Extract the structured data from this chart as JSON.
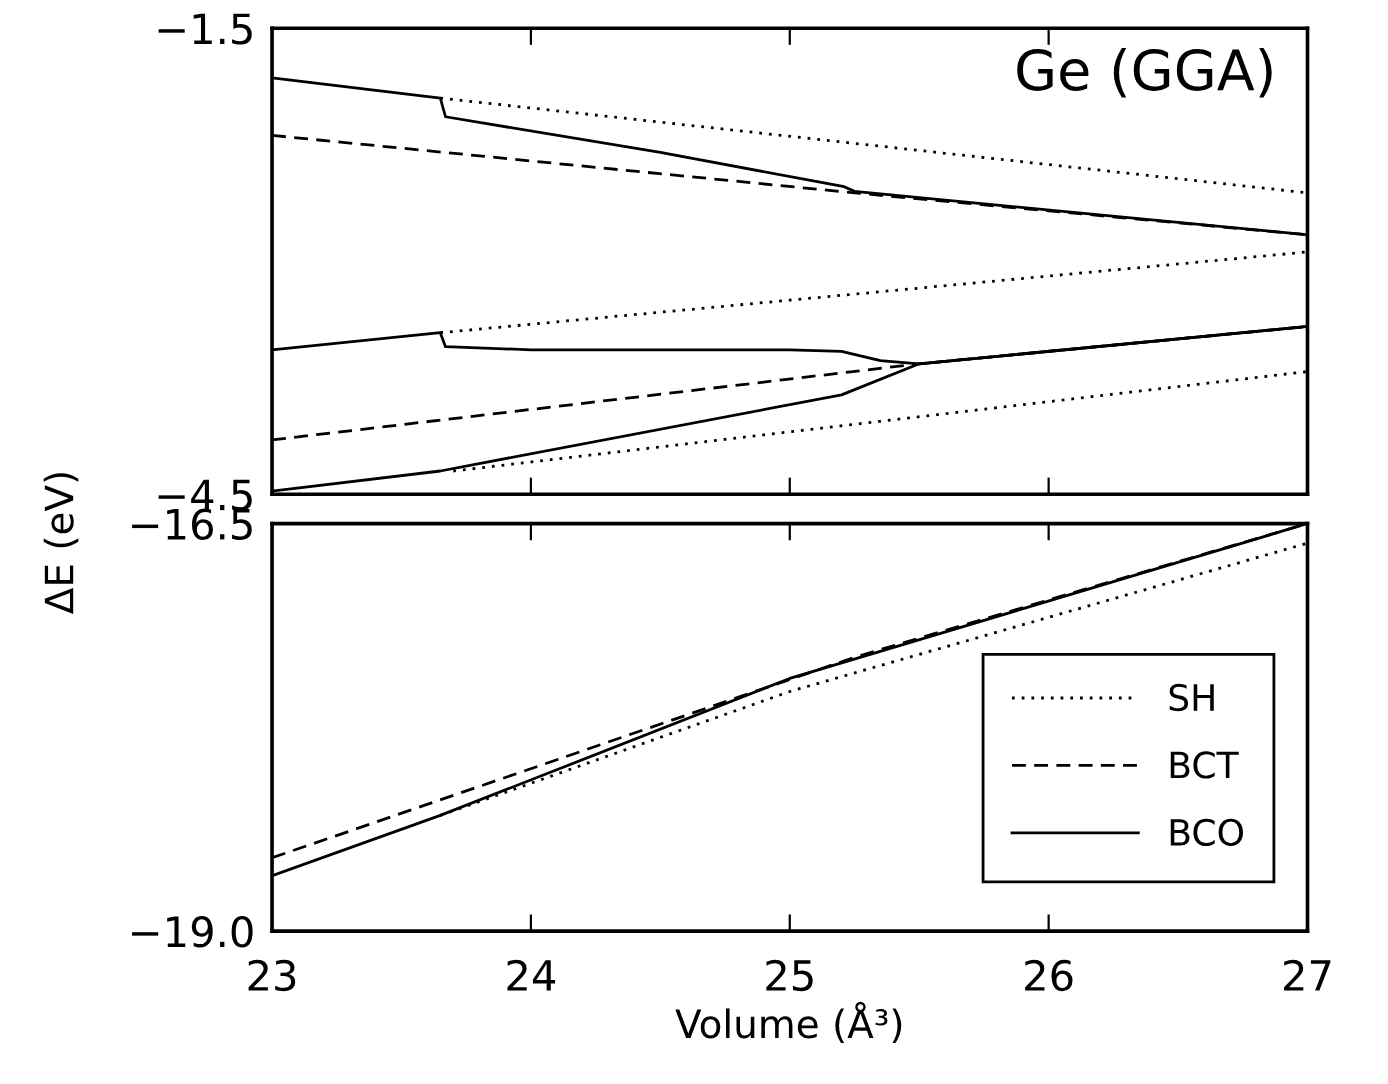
{
  "chart_data": [
    {
      "type": "line",
      "ylabel": "ΔE (eV)",
      "annotations": [
        "Ge (GGA)"
      ],
      "xlim": [
        23,
        27
      ],
      "xticks": [
        {
          "value": 23,
          "label": null
        },
        {
          "value": 24,
          "label": null
        },
        {
          "value": 25,
          "label": null
        },
        {
          "value": 26,
          "label": null
        },
        {
          "value": 27,
          "label": null
        }
      ],
      "ylim": [
        -4.5,
        -1.5
      ],
      "yticks": [
        -1.5,
        -4.5
      ],
      "tick_labels": "y",
      "grid": false,
      "legend": false,
      "series": [
        {
          "color": "#000000",
          "line_style": "dotted",
          "x": [
            23.65,
            27
          ],
          "values": [
            -1.95,
            -2.56
          ]
        },
        {
          "color": "#000000",
          "line_style": "dotted",
          "x": [
            23.65,
            27
          ],
          "values": [
            -3.46,
            -2.94
          ]
        },
        {
          "color": "#000000",
          "line_style": "dotted",
          "x": [
            23.7,
            27
          ],
          "values": [
            -4.35,
            -3.71
          ]
        },
        {
          "color": "#000000",
          "line_style": "dashed",
          "x": [
            23,
            25.25,
            27
          ],
          "values": [
            -2.19,
            -2.56,
            -2.83
          ]
        },
        {
          "color": "#000000",
          "line_style": "dashed",
          "x": [
            23,
            25.5,
            27
          ],
          "values": [
            -4.15,
            -3.66,
            -3.42
          ]
        },
        {
          "color": "#000000",
          "line_style": "solid",
          "x": [
            23,
            23.65,
            23.67,
            24.5,
            25.21,
            25.25,
            27
          ],
          "values": [
            -1.82,
            -1.95,
            -2.07,
            -2.3,
            -2.52,
            -2.55,
            -2.83
          ]
        },
        {
          "color": "#000000",
          "line_style": "solid",
          "x": [
            23,
            23.65,
            23.67,
            24.0,
            25.0,
            25.2,
            25.35,
            25.5,
            27
          ],
          "values": [
            -3.57,
            -3.46,
            -3.55,
            -3.57,
            -3.57,
            -3.58,
            -3.64,
            -3.66,
            -3.42
          ]
        },
        {
          "color": "#000000",
          "line_style": "solid",
          "x": [
            23,
            23.65,
            25.2,
            25.5,
            27
          ],
          "values": [
            -4.48,
            -4.35,
            -3.86,
            -3.66,
            -3.42
          ]
        }
      ]
    },
    {
      "type": "line",
      "xlabel": "Volume (Å³)",
      "xlim": [
        23,
        27
      ],
      "xticks": [
        {
          "value": 23,
          "label": "23"
        },
        {
          "value": 24,
          "label": "24"
        },
        {
          "value": 25,
          "label": "25"
        },
        {
          "value": 26,
          "label": "26"
        },
        {
          "value": 27,
          "label": "27"
        }
      ],
      "ylim": [
        -19.0,
        -16.5
      ],
      "yticks": [
        {
          "value": -16.5,
          "label": "−16.5"
        },
        {
          "value": -19.0,
          "label": "−19.0"
        }
      ],
      "grid": false,
      "legend": "right",
      "series": [
        {
          "name": "SH",
          "color": "#000000",
          "line_style": "dotted",
          "x": [
            23.65,
            25,
            27
          ],
          "values": [
            -18.29,
            -17.53,
            -16.62
          ]
        },
        {
          "name": "BCT",
          "color": "#000000",
          "line_style": "dashed",
          "x": [
            23,
            25.25,
            27
          ],
          "values": [
            -18.55,
            -17.32,
            -16.5
          ]
        },
        {
          "name": "BCO",
          "color": "#000000",
          "line_style": "solid",
          "x": [
            23,
            23.65,
            25,
            27
          ],
          "values": [
            -18.66,
            -18.29,
            -17.45,
            -16.5
          ]
        }
      ]
    }
  ]
}
